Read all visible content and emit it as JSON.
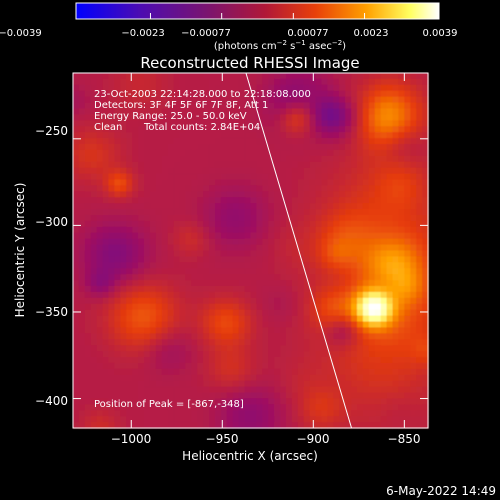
{
  "chart_data": {
    "type": "heatmap",
    "title": "Reconstructed RHESSI Image",
    "xlabel": "Heliocentric X (arcsec)",
    "ylabel": "Heliocentric Y (arcsec)",
    "xlim": [
      -1032,
      -837
    ],
    "ylim": [
      -417,
      -212
    ],
    "x_ticks": [
      -1000,
      -950,
      -900,
      -850
    ],
    "y_ticks": [
      -400,
      -350,
      -300,
      -250
    ],
    "x_tick_labels": [
      "−1000",
      "−950",
      "−900",
      "−850"
    ],
    "y_tick_labels": [
      "−400",
      "−350",
      "−300",
      "−250"
    ],
    "colorbar": {
      "range": [
        -0.0039,
        0.0039
      ],
      "tick_labels": [
        "−0.0039",
        "−0.0023",
        "−0.00077",
        "0.00077",
        "0.0023",
        "0.0039"
      ],
      "colormap": [
        "#0000ff",
        "#5a0aa0",
        "#a01060",
        "#e63c0a",
        "#ffa000",
        "#ffff80",
        "#ffffff"
      ]
    },
    "peak": {
      "x": -867,
      "y": -348,
      "value": 0.0039
    },
    "limb_line": {
      "from": [
        -937,
        -212
      ],
      "to": [
        -879,
        -417
      ]
    },
    "annotations": {
      "time_range": "23-Oct-2003 22:14:28.000 to 22:18:08.000",
      "detectors": "Detectors: 3F 4F 5F 6F 7F 8F, Att 1",
      "energy": "Energy Range: 25.0 - 50.0 keV",
      "method": "Clean",
      "counts": "Total counts: 2.84E+04",
      "peak_label": "Position of Peak = [-867,-348]"
    }
  },
  "timestamp": "6-May-2022 14:49",
  "colors": {
    "background": "#000000",
    "text": "#ffffff",
    "limb": "#ffffff"
  }
}
